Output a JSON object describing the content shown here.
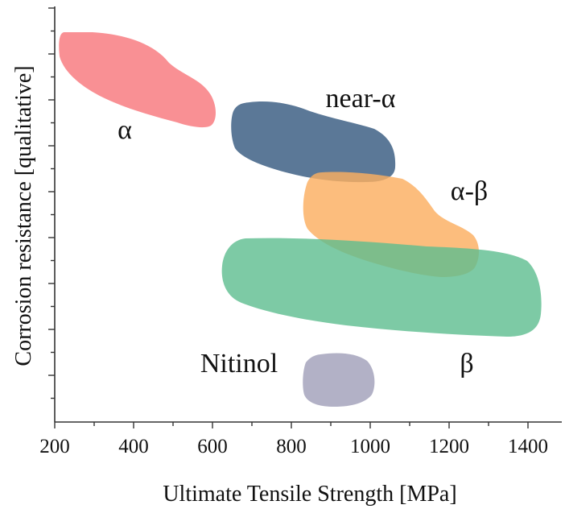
{
  "chart_data": {
    "type": "scatter",
    "title": "",
    "xlabel": "Ultimate Tensile Strength [MPa]",
    "ylabel": "Corrosion resistance [qualitative]",
    "xlim": [
      200,
      1460
    ],
    "x_ticks": [
      200,
      400,
      600,
      800,
      1000,
      1200,
      1400
    ],
    "x_tick_labels": [
      "200",
      "400",
      "600",
      "800",
      "1000",
      "1200",
      "1400"
    ],
    "y_tick_labels_shown": false,
    "grid": false,
    "legend": "none",
    "regions": [
      {
        "name": "α",
        "color": "#f98a8e",
        "uts_min": 210,
        "uts_max": 600,
        "label_x": 375
      },
      {
        "name": "near-α",
        "color": "#4d6c8e",
        "uts_min": 640,
        "uts_max": 1050,
        "label_x": 970
      },
      {
        "name": "α-β",
        "color": "#fbae60",
        "uts_min": 820,
        "uts_max": 1260,
        "label_x": 1160
      },
      {
        "name": "β",
        "color": "#5cbd8f",
        "uts_min": 620,
        "uts_max": 1420,
        "label_x": 1235
      },
      {
        "name": "Nitinol",
        "color": "#aeadc3",
        "uts_min": 825,
        "uts_max": 1000,
        "label_x": 585
      }
    ]
  }
}
